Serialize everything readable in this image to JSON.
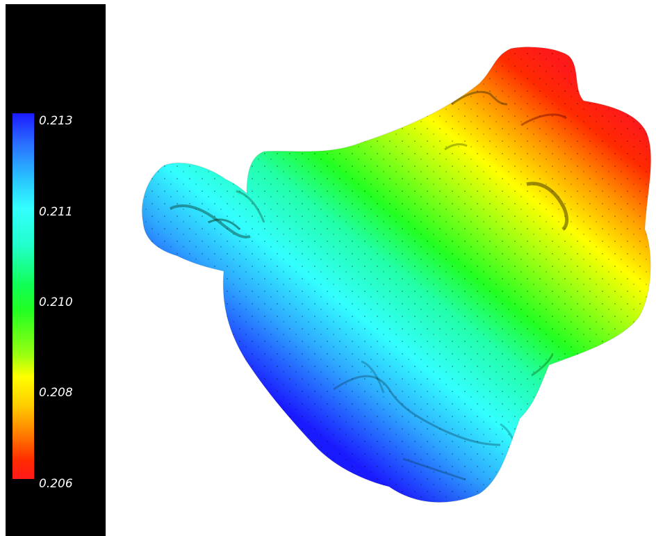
{
  "colorbar": {
    "ticks": [
      "0.213",
      "0.211",
      "0.210",
      "0.208",
      "0.206"
    ],
    "max_color": "#1a1aff",
    "min_color": "#ff1a1a",
    "background_color": "#000000"
  },
  "surface": {
    "colormap": [
      "#1a1aff",
      "#33ffff",
      "#22ff22",
      "#ffff00",
      "#ff1a1a"
    ]
  }
}
